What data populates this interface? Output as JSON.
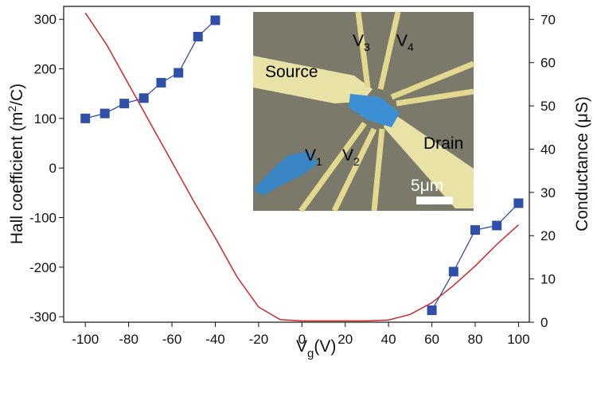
{
  "chart_data": {
    "type": "line",
    "xlim": [
      -110,
      105
    ],
    "xticks": [
      -100,
      -80,
      -60,
      -40,
      -20,
      0,
      20,
      40,
      60,
      80,
      100
    ],
    "ylim": [
      -311,
      326
    ],
    "yticks": [
      -300,
      -200,
      -100,
      0,
      100,
      200,
      300
    ],
    "y2lim": [
      0,
      73
    ],
    "y2ticks": [
      0,
      10,
      20,
      30,
      40,
      50,
      60,
      70
    ],
    "x_label": [
      "V",
      "g",
      "(V)"
    ],
    "y_label": [
      "Hall coefficient (m",
      "2",
      "/C)"
    ],
    "y2_label": "Conductance (μS)",
    "series": [
      {
        "color": "#2f4fa8",
        "marker": "square",
        "x": [
          -100,
          -91,
          -82,
          -73,
          -65,
          -57,
          -48,
          -40
        ],
        "values": [
          100,
          110,
          130,
          141,
          172,
          192,
          265,
          298
        ]
      },
      {
        "color": "#2f4fa8",
        "marker": "square",
        "x": [
          60,
          70,
          80,
          90,
          100
        ],
        "values": [
          -287,
          -209,
          -125,
          -116,
          -71
        ]
      },
      {
        "color": "#d0262a",
        "axis": "y2",
        "x": [
          -100,
          -90,
          -80,
          -70,
          -60,
          -50,
          -40,
          -30,
          -20,
          -10,
          0,
          10,
          20,
          30,
          40,
          50,
          60,
          70,
          80,
          90,
          100
        ],
        "values": [
          71.5,
          64,
          55,
          46,
          37,
          28,
          19.5,
          10.5,
          3.5,
          0.6,
          0.3,
          0.3,
          0.3,
          0.3,
          0.5,
          1.8,
          4.5,
          8.5,
          13,
          18,
          22.5
        ]
      }
    ],
    "inset": {
      "labels": [
        {
          "text": "Source"
        },
        {
          "text": "Drain"
        },
        {
          "text": "V",
          "sub": "1"
        },
        {
          "text": "V",
          "sub": "2"
        },
        {
          "text": "V",
          "sub": "3"
        },
        {
          "text": "V",
          "sub": "4"
        }
      ],
      "scale_bar": "5μm"
    }
  }
}
